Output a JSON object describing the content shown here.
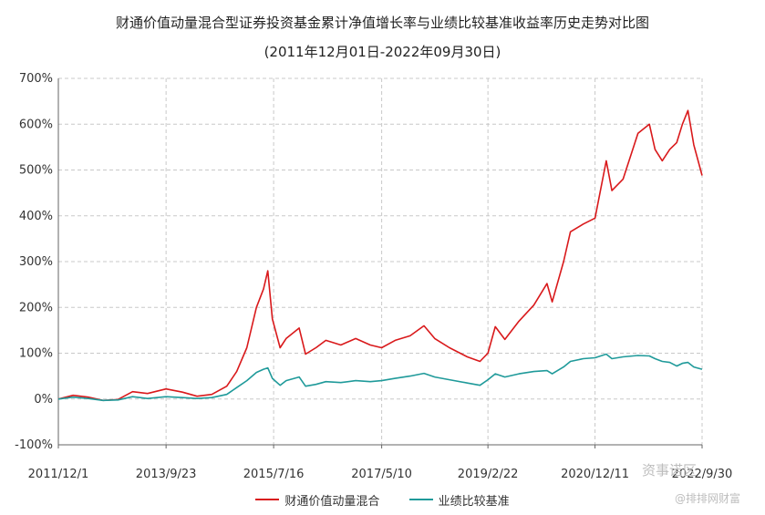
{
  "chart_data": {
    "type": "line",
    "title": "财通价值动量混合型证券投资基金累计净值增长率与业绩比较基准收益率历史走势对比图",
    "subtitle": "(2011年12月01日-2022年09月30日)",
    "x_ticks": [
      "2011/12/1",
      "2013/9/23",
      "2015/7/16",
      "2017/5/10",
      "2019/2/22",
      "2020/12/11",
      "2022/9/30"
    ],
    "y_ticks": [
      "-100%",
      "0%",
      "100%",
      "200%",
      "300%",
      "400%",
      "500%",
      "600%",
      "700%"
    ],
    "ylim": [
      -100,
      700
    ],
    "xlim": [
      "2011-12-01",
      "2022-09-30"
    ],
    "grid": true,
    "legend_position": "bottom",
    "colors": {
      "fund": "#d9191b",
      "benchmark": "#1f9a9a",
      "grid": "#c8c8c8",
      "axis": "#666666"
    },
    "series": [
      {
        "name": "财通价值动量混合",
        "x": [
          "2011-12-01",
          "2012-03-01",
          "2012-06-01",
          "2012-09-01",
          "2012-12-01",
          "2013-03-01",
          "2013-06-01",
          "2013-09-23",
          "2014-01-01",
          "2014-04-01",
          "2014-07-01",
          "2014-10-01",
          "2014-12-01",
          "2015-02-01",
          "2015-04-01",
          "2015-05-15",
          "2015-06-10",
          "2015-07-08",
          "2015-08-25",
          "2015-10-01",
          "2015-12-20",
          "2016-01-28",
          "2016-04-01",
          "2016-06-01",
          "2016-09-01",
          "2016-12-01",
          "2017-03-01",
          "2017-05-10",
          "2017-08-01",
          "2017-11-01",
          "2018-01-25",
          "2018-04-01",
          "2018-07-01",
          "2018-10-18",
          "2019-01-04",
          "2019-02-22",
          "2019-04-08",
          "2019-06-06",
          "2019-09-01",
          "2019-12-01",
          "2020-02-20",
          "2020-03-23",
          "2020-06-01",
          "2020-07-13",
          "2020-09-30",
          "2020-12-11",
          "2021-02-18",
          "2021-03-25",
          "2021-06-01",
          "2021-09-01",
          "2021-11-10",
          "2021-12-15",
          "2022-01-28",
          "2022-03-15",
          "2022-04-27",
          "2022-06-01",
          "2022-07-05",
          "2022-08-10",
          "2022-09-30"
        ],
        "values": [
          0,
          8,
          4,
          -3,
          -1,
          16,
          12,
          22,
          15,
          6,
          10,
          28,
          60,
          112,
          200,
          240,
          280,
          175,
          112,
          132,
          155,
          98,
          112,
          128,
          118,
          132,
          118,
          112,
          128,
          138,
          160,
          132,
          112,
          92,
          82,
          100,
          158,
          130,
          170,
          205,
          252,
          212,
          300,
          365,
          382,
          395,
          520,
          455,
          480,
          580,
          600,
          545,
          520,
          545,
          560,
          600,
          630,
          555,
          488
        ]
      },
      {
        "name": "业绩比较基准",
        "x": [
          "2011-12-01",
          "2012-03-01",
          "2012-06-01",
          "2012-09-01",
          "2012-12-01",
          "2013-03-01",
          "2013-06-01",
          "2013-09-23",
          "2014-01-01",
          "2014-04-01",
          "2014-07-01",
          "2014-10-01",
          "2014-12-01",
          "2015-02-01",
          "2015-04-01",
          "2015-05-15",
          "2015-06-10",
          "2015-07-08",
          "2015-08-25",
          "2015-10-01",
          "2015-12-20",
          "2016-01-28",
          "2016-04-01",
          "2016-06-01",
          "2016-09-01",
          "2016-12-01",
          "2017-03-01",
          "2017-05-10",
          "2017-08-01",
          "2017-11-01",
          "2018-01-25",
          "2018-04-01",
          "2018-07-01",
          "2018-10-18",
          "2019-01-04",
          "2019-02-22",
          "2019-04-08",
          "2019-06-06",
          "2019-09-01",
          "2019-12-01",
          "2020-02-20",
          "2020-03-23",
          "2020-06-01",
          "2020-07-13",
          "2020-09-30",
          "2020-12-11",
          "2021-02-18",
          "2021-03-25",
          "2021-06-01",
          "2021-09-01",
          "2021-11-10",
          "2021-12-15",
          "2022-01-28",
          "2022-03-15",
          "2022-04-27",
          "2022-06-01",
          "2022-07-05",
          "2022-08-10",
          "2022-09-30"
        ],
        "values": [
          0,
          4,
          1,
          -3,
          -2,
          5,
          1,
          5,
          3,
          1,
          3,
          10,
          25,
          40,
          58,
          65,
          68,
          45,
          30,
          40,
          48,
          28,
          32,
          38,
          36,
          40,
          38,
          40,
          45,
          50,
          56,
          48,
          42,
          35,
          30,
          42,
          55,
          48,
          55,
          60,
          62,
          55,
          70,
          82,
          88,
          90,
          98,
          88,
          92,
          95,
          94,
          88,
          82,
          80,
          72,
          78,
          80,
          70,
          65
        ]
      }
    ]
  },
  "watermarks": [
    "资事诺区",
    "@排排网财富"
  ]
}
